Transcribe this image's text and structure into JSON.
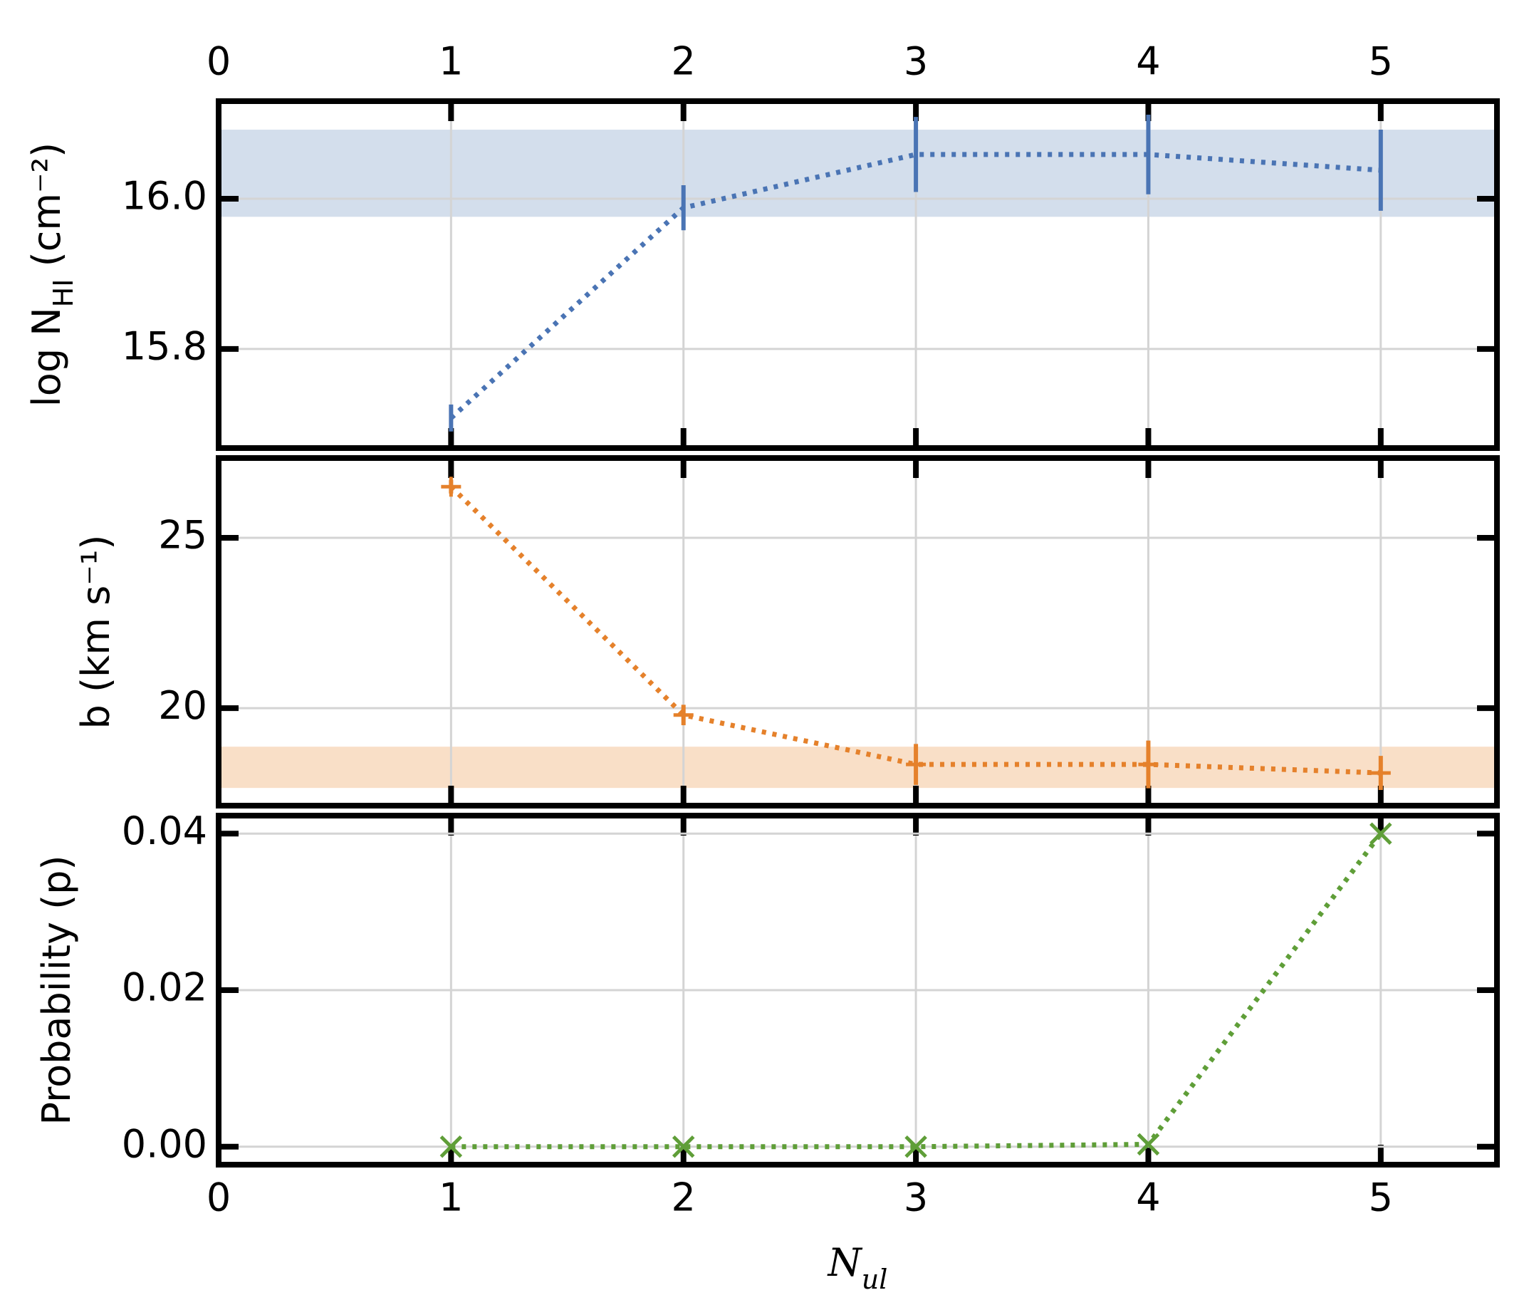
{
  "chart_data": [
    {
      "type": "line",
      "ylabel": "log N_HI (cm⁻²)",
      "x": [
        1,
        2,
        3,
        4,
        5
      ],
      "xlim": [
        0,
        5.5
      ],
      "xticks": [
        0,
        1,
        2,
        3,
        4,
        5
      ],
      "xtick_side": "top",
      "ylim": [
        15.668,
        16.13
      ],
      "yticks": [
        {
          "value": 15.8,
          "label": "15.8"
        },
        {
          "value": 16.0,
          "label": "16.0"
        }
      ],
      "grid": true,
      "band": [
        15.976,
        16.092
      ],
      "band_color": "#d3deec",
      "series": [
        {
          "color": "#4a74b4",
          "marker": "none",
          "values": [
            15.708,
            15.988,
            16.059,
            16.059,
            16.038
          ],
          "errors": [
            0.018,
            0.03,
            0.05,
            0.053,
            0.054
          ]
        }
      ]
    },
    {
      "type": "line",
      "ylabel": "b (km s⁻¹)",
      "x": [
        1,
        2,
        3,
        4,
        5
      ],
      "xlim": [
        0,
        5.5
      ],
      "xticks": [
        0,
        1,
        2,
        3,
        4,
        5
      ],
      "ylim": [
        17.14,
        27.34
      ],
      "yticks": [
        20,
        25
      ],
      "grid": true,
      "band": [
        17.66,
        18.87
      ],
      "band_color": "#f9dfc7",
      "series": [
        {
          "color": "#e5812b",
          "marker": "plus",
          "values": [
            26.5,
            19.8,
            18.35,
            18.35,
            18.1
          ],
          "errors": [
            0.2,
            0.3,
            0.6,
            0.7,
            0.5
          ]
        }
      ]
    },
    {
      "type": "line",
      "ylabel": "Probability (p)",
      "xlabel": "N_ul",
      "x": [
        1,
        2,
        3,
        4,
        5
      ],
      "xlim": [
        0,
        5.5
      ],
      "xticks": [
        0,
        1,
        2,
        3,
        4,
        5
      ],
      "xtick_side": "bottom",
      "ylim": [
        -0.0023,
        0.0423
      ],
      "yticks": [
        {
          "value": 0,
          "label": "0.00"
        },
        0.02,
        0.04
      ],
      "grid": true,
      "series": [
        {
          "color": "#5f9e38",
          "marker": "x",
          "values": [
            0,
            0,
            0,
            0.0003,
            0.04
          ]
        }
      ]
    }
  ]
}
